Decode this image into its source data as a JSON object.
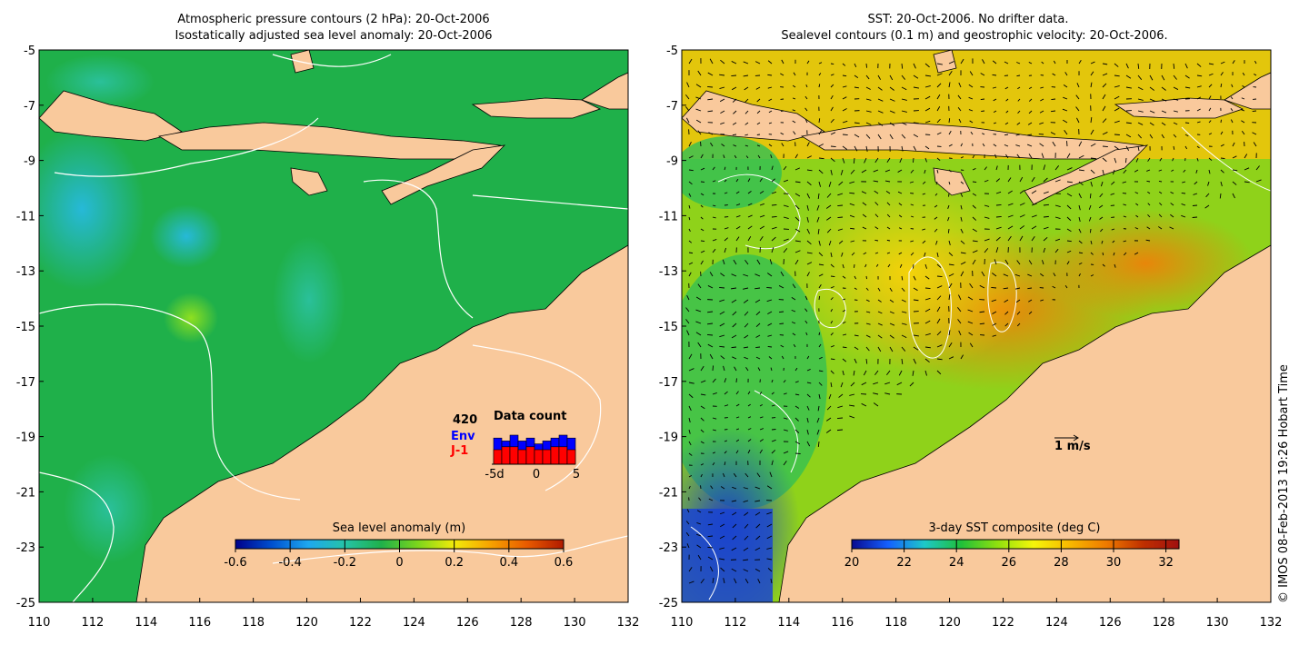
{
  "left_panel": {
    "title_line1": "Atmospheric pressure contours (2 hPa): 20-Oct-2006",
    "title_line2": "Isostatically adjusted sea level anomaly: 20-Oct-2006",
    "colorbar": {
      "label": "Sea level anomaly (m)",
      "ticks": [
        "-0.6",
        "-0.4",
        "-0.2",
        "0",
        "0.2",
        "0.4",
        "0.6"
      ],
      "min": -0.6,
      "max": 0.6
    },
    "data_count": {
      "title": "Data count",
      "total": "420",
      "series_env": "Env",
      "series_j1": "J-1",
      "env_color": "#0000ff",
      "j1_color": "#ff0000",
      "axis_ticks": [
        "-5d",
        "0",
        "5"
      ],
      "env_values": [
        9,
        8,
        10,
        8,
        9,
        7,
        8,
        9,
        10,
        9
      ],
      "j1_values": [
        5,
        6,
        6,
        5,
        6,
        5,
        5,
        6,
        6,
        5
      ]
    }
  },
  "right_panel": {
    "title_line1": "SST: 20-Oct-2006. No drifter data.",
    "title_line2": "Sealevel contours (0.1 m) and geostrophic velocity: 20-Oct-2006.",
    "colorbar": {
      "label": "3-day SST composite (deg C)",
      "ticks": [
        "20",
        "22",
        "24",
        "26",
        "28",
        "30",
        "32"
      ],
      "min": 20,
      "max": 32.5
    },
    "velocity_scale_label": "1 m/s"
  },
  "axes": {
    "x_ticks": [
      "110",
      "112",
      "114",
      "116",
      "118",
      "120",
      "122",
      "124",
      "126",
      "128",
      "130",
      "132"
    ],
    "y_ticks": [
      "-5",
      "-7",
      "-9",
      "-11",
      "-13",
      "-15",
      "-17",
      "-19",
      "-21",
      "-23",
      "-25"
    ],
    "x_range": [
      110,
      132
    ],
    "y_range": [
      -25,
      -5
    ]
  },
  "colors": {
    "land": "#f9c99c",
    "ocean_sla": "#1fb04a",
    "sla_scale": [
      "#00008b",
      "#0050d0",
      "#1ea8ef",
      "#25c3a8",
      "#1fb04a",
      "#7cd61c",
      "#f2ea0a",
      "#f7a200",
      "#e85a00",
      "#b01a00"
    ],
    "sst_scale": [
      "#0a0a8f",
      "#1460ff",
      "#1ec8c8",
      "#1fbf3a",
      "#8fe00f",
      "#f5f50a",
      "#f8b800",
      "#ee7a00",
      "#c03000",
      "#a01010"
    ]
  },
  "credit": "© IMOS 08-Feb-2013 19:26 Hobart Time"
}
